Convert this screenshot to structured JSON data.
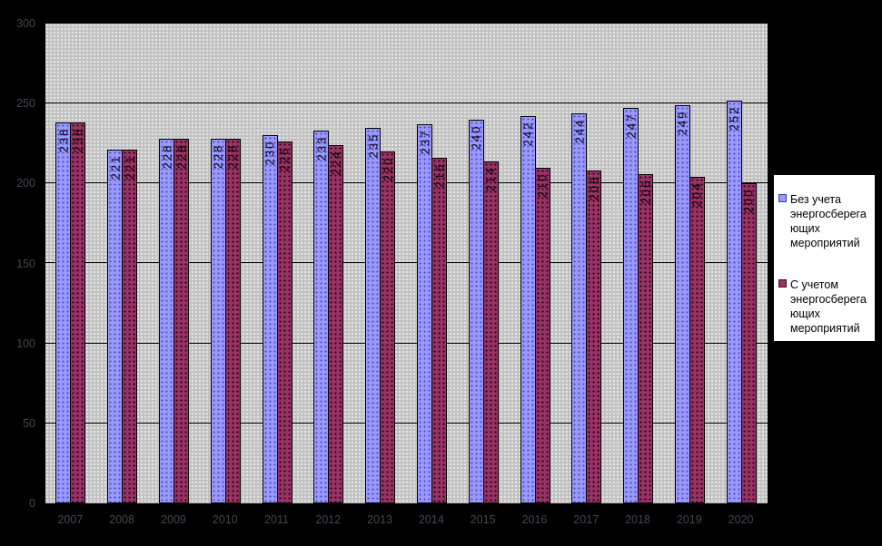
{
  "chart_data": {
    "type": "bar",
    "title": "",
    "xlabel": "",
    "ylabel": "",
    "categories": [
      "2007",
      "2008",
      "2009",
      "2010",
      "2011",
      "2012",
      "2013",
      "2014",
      "2015",
      "2016",
      "2017",
      "2018",
      "2019",
      "2020"
    ],
    "series": [
      {
        "name": "Без учета энергосберегающих мероприятий",
        "values": [
          238,
          221,
          228,
          228,
          230,
          233,
          235,
          237,
          240,
          242,
          244,
          247,
          249,
          252
        ],
        "color": "#9999ff",
        "dot_color": "#4a4ab8"
      },
      {
        "name": "С учетом энергосберегающих мероприятий",
        "values": [
          238,
          221,
          228,
          228,
          226,
          224,
          220,
          216,
          214,
          210,
          208,
          206,
          204,
          200
        ],
        "color": "#993366",
        "dot_color": "#1a000d"
      }
    ],
    "ylim": [
      0,
      300
    ],
    "yticks": [
      0,
      50,
      100,
      150,
      200,
      250,
      300
    ],
    "grid": true,
    "data_labels": true,
    "legend_position": "right"
  },
  "legend": {
    "items": [
      {
        "lines": [
          "Без учета",
          "энергосберега",
          "ющих",
          "мероприятий"
        ],
        "color": "#9999ff",
        "border": "#3c3c96"
      },
      {
        "lines": [
          "С учетом",
          "энергосберега",
          "ющих",
          "мероприятий"
        ],
        "color": "#993366",
        "border": "#3c0e26"
      }
    ]
  },
  "colors": {
    "background": "#000000",
    "plot_background": "#c2c2c2",
    "plot_dot": "#ebebeb",
    "gridline": "#000000",
    "axis_label": "#46464e",
    "bar_label": "#000000",
    "legend_background": "#ffffff",
    "legend_border": "#000000",
    "legend_text": "#000000"
  }
}
